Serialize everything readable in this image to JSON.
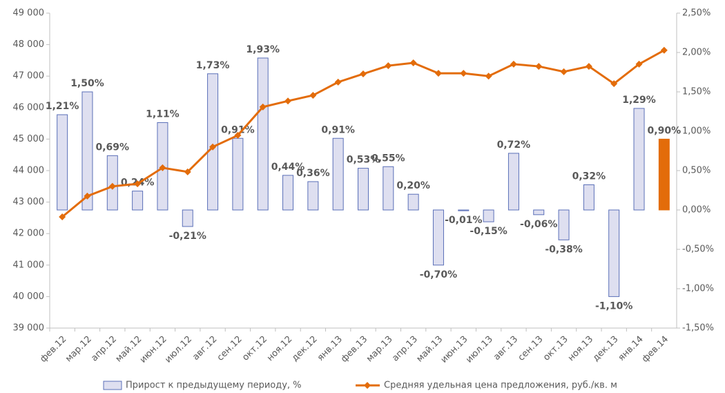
{
  "chart_data": {
    "type": "bar_line",
    "categories": [
      "фев.12",
      "мар.12",
      "апр.12",
      "май.12",
      "июн.12",
      "июл.12",
      "авг.12",
      "сен.12",
      "окт.12",
      "ноя.12",
      "дек.12",
      "янв.13",
      "фев.13",
      "мар.13",
      "апр.13",
      "май.13",
      "июн.13",
      "июл.13",
      "авг.13",
      "сен.13",
      "окт.13",
      "ноя.13",
      "дек.13",
      "янв.14",
      "фев.14"
    ],
    "series": [
      {
        "name": "Прирост к предыдущему периоду, %",
        "type": "bar",
        "axis": "y2",
        "color": "#dedff0",
        "edge_color": "#5a6fb8",
        "colors": [
          "#dedff0",
          "#dedff0",
          "#dedff0",
          "#dedff0",
          "#dedff0",
          "#dedff0",
          "#dedff0",
          "#dedff0",
          "#dedff0",
          "#dedff0",
          "#dedff0",
          "#dedff0",
          "#dedff0",
          "#dedff0",
          "#dedff0",
          "#dedff0",
          "#dedff0",
          "#dedff0",
          "#dedff0",
          "#dedff0",
          "#dedff0",
          "#dedff0",
          "#dedff0",
          "#dedff0",
          "#e36c0a"
        ],
        "values": [
          1.21,
          1.5,
          0.69,
          0.24,
          1.11,
          -0.21,
          1.73,
          0.91,
          1.93,
          0.44,
          0.36,
          0.91,
          0.53,
          0.55,
          0.2,
          -0.7,
          -0.01,
          -0.15,
          0.72,
          -0.06,
          -0.38,
          0.32,
          -1.1,
          1.29,
          0.9
        ],
        "value_labels": [
          "1,21%",
          "1,50%",
          "0,69%",
          "0,24%",
          "1,11%",
          "-0,21%",
          "1,73%",
          "0,91%",
          "1,93%",
          "0,44%",
          "0,36%",
          "0,91%",
          "0,53%",
          "0,55%",
          "0,20%",
          "-0,70%",
          "-0,01%",
          "-0,15%",
          "0,72%",
          "-0,06%",
          "-0,38%",
          "0,32%",
          "-1,10%",
          "1,29%",
          "0,90%"
        ]
      },
      {
        "name": "Средняя удельная цена предложения, руб./кв. м",
        "type": "line",
        "color": "#e36c0a",
        "values": [
          42530,
          43190,
          43500,
          43580,
          44090,
          43960,
          44750,
          45120,
          46020,
          46210,
          46390,
          46810,
          47070,
          47330,
          47420,
          47090,
          47090,
          47000,
          47380,
          47310,
          47140,
          47310,
          46760,
          47380,
          47820
        ]
      }
    ],
    "ylim": [
      39000,
      49000
    ],
    "yticks": [
      {
        "value": 39000,
        "label": "39 000"
      },
      {
        "value": 40000,
        "label": "40 000"
      },
      {
        "value": 41000,
        "label": "41 000"
      },
      {
        "value": 42000,
        "label": "42 000"
      },
      {
        "value": 43000,
        "label": "43 000"
      },
      {
        "value": 44000,
        "label": "44 000"
      },
      {
        "value": 45000,
        "label": "45 000"
      },
      {
        "value": 46000,
        "label": "46 000"
      },
      {
        "value": 47000,
        "label": "47 000"
      },
      {
        "value": 48000,
        "label": "48 000"
      },
      {
        "value": 49000,
        "label": "49 000"
      }
    ],
    "y2lim": [
      -1.5,
      2.5
    ],
    "y2ticks": [
      {
        "value": -1.5,
        "label": "-1,50%"
      },
      {
        "value": -1.0,
        "label": "-1,00%"
      },
      {
        "value": -0.5,
        "label": "-0,50%"
      },
      {
        "value": 0,
        "label": "0,00%"
      },
      {
        "value": 0.5,
        "label": "0,50%"
      },
      {
        "value": 1.0,
        "label": "1,00%"
      },
      {
        "value": 1.5,
        "label": "1,50%"
      },
      {
        "value": 2.0,
        "label": "2,00%"
      },
      {
        "value": 2.5,
        "label": "2,50%"
      }
    ],
    "legend": "bottom"
  }
}
